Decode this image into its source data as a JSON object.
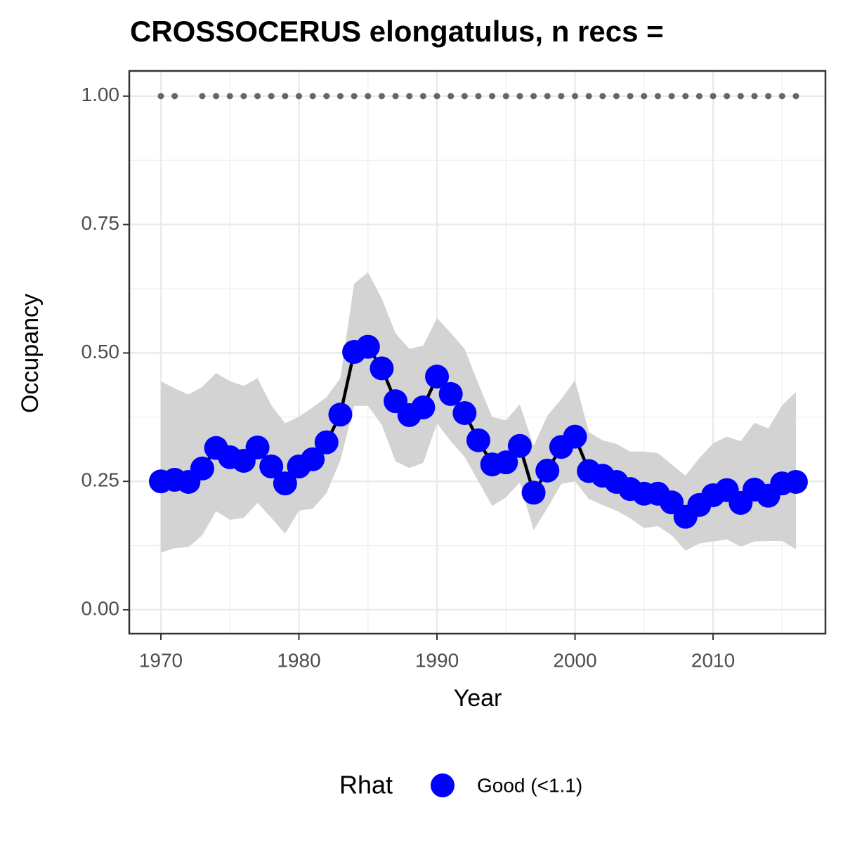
{
  "chart_data": {
    "type": "line",
    "title": "CROSSOCERUS elongatulus, n recs =",
    "x_label": "Year",
    "y_label": "Occupancy",
    "x": [
      1970,
      1971,
      1972,
      1973,
      1974,
      1975,
      1976,
      1977,
      1978,
      1979,
      1980,
      1981,
      1982,
      1983,
      1984,
      1985,
      1986,
      1987,
      1988,
      1989,
      1990,
      1991,
      1992,
      1993,
      1994,
      1995,
      1996,
      1997,
      1998,
      1999,
      2000,
      2001,
      2002,
      2003,
      2004,
      2005,
      2006,
      2007,
      2008,
      2009,
      2010,
      2011,
      2012,
      2013,
      2014,
      2015,
      2016
    ],
    "series": [
      {
        "name": "Good (<1.1)",
        "color": "#0000ff",
        "line_color": "#000000",
        "band_color": "#d3d3d3",
        "values": [
          0.25,
          0.253,
          0.249,
          0.275,
          0.315,
          0.297,
          0.29,
          0.316,
          0.279,
          0.246,
          0.279,
          0.293,
          0.326,
          0.38,
          0.502,
          0.512,
          0.47,
          0.406,
          0.379,
          0.394,
          0.454,
          0.42,
          0.383,
          0.33,
          0.283,
          0.287,
          0.319,
          0.228,
          0.271,
          0.317,
          0.337,
          0.27,
          0.261,
          0.249,
          0.235,
          0.226,
          0.226,
          0.209,
          0.181,
          0.204,
          0.223,
          0.233,
          0.208,
          0.234,
          0.222,
          0.246,
          0.249
        ],
        "upper": [
          0.445,
          0.431,
          0.419,
          0.434,
          0.461,
          0.445,
          0.436,
          0.451,
          0.398,
          0.363,
          0.376,
          0.394,
          0.414,
          0.451,
          0.635,
          0.657,
          0.606,
          0.538,
          0.508,
          0.514,
          0.568,
          0.539,
          0.508,
          0.44,
          0.375,
          0.369,
          0.4,
          0.319,
          0.378,
          0.41,
          0.447,
          0.346,
          0.33,
          0.323,
          0.308,
          0.308,
          0.305,
          0.283,
          0.261,
          0.295,
          0.324,
          0.337,
          0.328,
          0.364,
          0.353,
          0.398,
          0.424
        ],
        "lower": [
          0.111,
          0.12,
          0.122,
          0.145,
          0.192,
          0.175,
          0.179,
          0.208,
          0.179,
          0.148,
          0.193,
          0.197,
          0.227,
          0.291,
          0.397,
          0.397,
          0.36,
          0.289,
          0.276,
          0.286,
          0.363,
          0.328,
          0.298,
          0.25,
          0.202,
          0.219,
          0.248,
          0.155,
          0.198,
          0.245,
          0.25,
          0.216,
          0.204,
          0.193,
          0.178,
          0.159,
          0.163,
          0.145,
          0.115,
          0.129,
          0.133,
          0.137,
          0.123,
          0.133,
          0.134,
          0.134,
          0.118
        ]
      },
      {
        "color": "#666666",
        "values": [
          1,
          1,
          null,
          1,
          1,
          1,
          1,
          1,
          1,
          1,
          1,
          1,
          1,
          1,
          1,
          1,
          1,
          1,
          1,
          1,
          1,
          1,
          1,
          1,
          1,
          1,
          1,
          1,
          1,
          1,
          1,
          1,
          1,
          1,
          1,
          1,
          1,
          1,
          1,
          1,
          1,
          1,
          1,
          1,
          1,
          1,
          1
        ]
      }
    ],
    "legend_title": "Rhat",
    "legend": "bottom",
    "xlim": [
      1967.71,
      2018.14
    ],
    "ylim": [
      -0.0465,
      1.049
    ],
    "xticks": [
      1970,
      1980,
      1990,
      2000,
      2010
    ],
    "yticks": [
      {
        "value": 0,
        "label": "0.00"
      },
      {
        "value": 0.25,
        "label": "0.25"
      },
      {
        "value": 0.5,
        "label": "0.50"
      },
      {
        "value": 0.75,
        "label": "0.75"
      },
      {
        "value": 1,
        "label": "1.00"
      }
    ],
    "grid": true,
    "minor_grid": true
  }
}
